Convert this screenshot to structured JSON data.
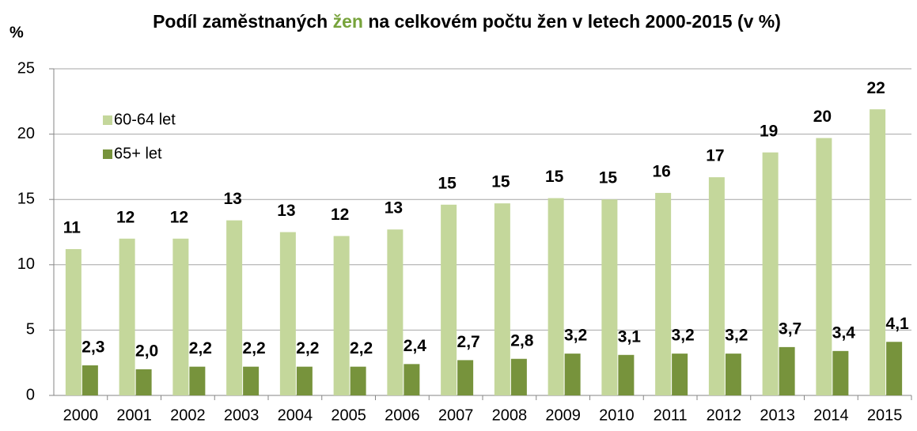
{
  "chart_data": {
    "type": "bar",
    "title": [
      "Podíl zaměstnaných",
      "žen",
      "na celkovém počtu žen v letech 2000-2015 (v %)"
    ],
    "title_highlight_color": "#77a33b",
    "ylabel": "%",
    "categories": [
      "2000",
      "2001",
      "2002",
      "2003",
      "2004",
      "2005",
      "2006",
      "2007",
      "2008",
      "2009",
      "2010",
      "2011",
      "2012",
      "2013",
      "2014",
      "2015"
    ],
    "series": [
      {
        "name": "60-64 let",
        "color": "#c4d79b",
        "values": [
          11.2,
          12.0,
          12.0,
          13.4,
          12.5,
          12.2,
          12.7,
          14.6,
          14.7,
          15.1,
          15.0,
          15.5,
          16.7,
          18.6,
          19.7,
          21.9
        ],
        "value_labels": [
          "11",
          "12",
          "12",
          "13",
          "13",
          "12",
          "13",
          "15",
          "15",
          "15",
          "15",
          "16",
          "17",
          "19",
          "20",
          "22"
        ]
      },
      {
        "name": "65+ let",
        "color": "#77933c",
        "values": [
          2.3,
          2.0,
          2.2,
          2.2,
          2.2,
          2.2,
          2.4,
          2.7,
          2.8,
          3.2,
          3.1,
          3.2,
          3.2,
          3.7,
          3.4,
          4.1
        ],
        "value_labels": [
          "2,3",
          "2,0",
          "2,2",
          "2,2",
          "2,2",
          "2,2",
          "2,4",
          "2,7",
          "2,8",
          "3,2",
          "3,1",
          "3,2",
          "3,2",
          "3,7",
          "3,4",
          "4,1"
        ]
      }
    ],
    "ylim": [
      0,
      25
    ],
    "yticks": [
      0,
      5,
      10,
      15,
      20,
      25
    ],
    "grid": true,
    "legend": "upper left"
  }
}
